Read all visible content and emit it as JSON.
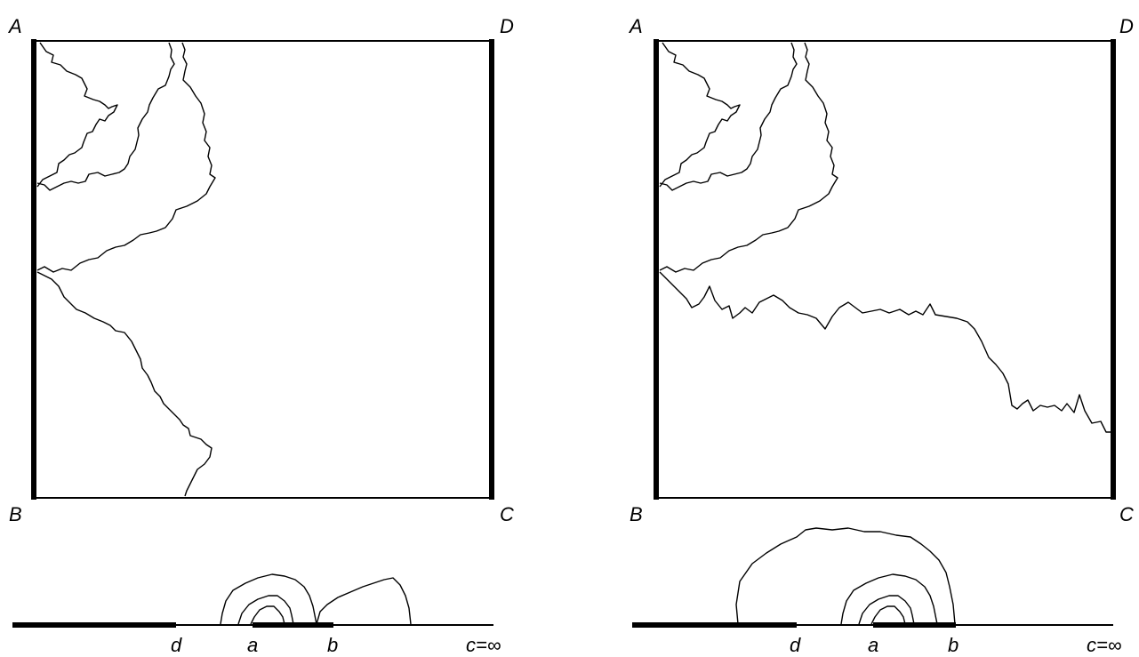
{
  "panels": [
    {
      "corners": {
        "A": "A",
        "B": "B",
        "C": "C",
        "D": "D"
      },
      "axis_labels": {
        "d": "d",
        "a": "a",
        "b": "b",
        "c": "c=∞"
      }
    },
    {
      "corners": {
        "A": "A",
        "B": "B",
        "C": "C",
        "D": "D"
      },
      "axis_labels": {
        "d": "d",
        "a": "a",
        "b": "b",
        "c": "c=∞"
      }
    }
  ]
}
